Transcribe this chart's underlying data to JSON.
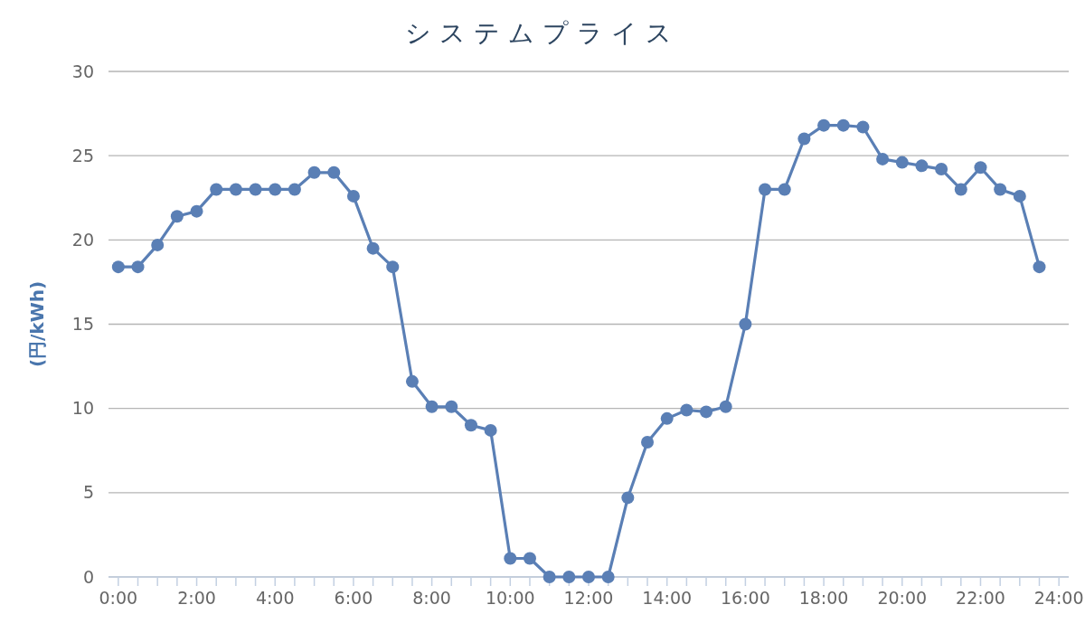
{
  "chart_data": {
    "type": "line",
    "title": "システムプライス",
    "ylabel": "(円/kWh)",
    "x": [
      0,
      0.5,
      1,
      1.5,
      2,
      2.5,
      3,
      3.5,
      4,
      4.5,
      5,
      5.5,
      6,
      6.5,
      7,
      7.5,
      8,
      8.5,
      9,
      9.5,
      10,
      10.5,
      11,
      11.5,
      12,
      12.5,
      13,
      13.5,
      14,
      14.5,
      15,
      15.5,
      16,
      16.5,
      17,
      17.5,
      18,
      18.5,
      19,
      19.5,
      20,
      20.5,
      21,
      21.5,
      22,
      22.5,
      23,
      23.5
    ],
    "values": [
      18.4,
      18.4,
      19.7,
      21.4,
      21.7,
      23.0,
      23.0,
      23.0,
      23.0,
      23.0,
      24.0,
      24.0,
      22.6,
      19.5,
      18.4,
      11.6,
      10.1,
      10.1,
      9.0,
      8.7,
      1.1,
      1.1,
      0,
      0,
      0,
      0,
      4.7,
      8.0,
      9.4,
      9.9,
      9.8,
      10.1,
      15.0,
      23.0,
      23.0,
      26.0,
      26.8,
      26.8,
      26.7,
      24.8,
      24.6,
      24.4,
      24.2,
      23.0,
      24.3,
      23.0,
      22.6,
      18.4
    ],
    "color": "#5a7fb5",
    "marker": "circle",
    "grid": "y",
    "xlim": [
      -0.25,
      24.25
    ],
    "xticks": [
      {
        "value": 0,
        "label": "0:00"
      },
      {
        "value": 0.5,
        "label": null
      },
      {
        "value": 1,
        "label": null
      },
      {
        "value": 1.5,
        "label": null
      },
      {
        "value": 2,
        "label": "2:00"
      },
      {
        "value": 2.5,
        "label": null
      },
      {
        "value": 3,
        "label": null
      },
      {
        "value": 3.5,
        "label": null
      },
      {
        "value": 4,
        "label": "4:00"
      },
      {
        "value": 4.5,
        "label": null
      },
      {
        "value": 5,
        "label": null
      },
      {
        "value": 5.5,
        "label": null
      },
      {
        "value": 6,
        "label": "6:00"
      },
      {
        "value": 6.5,
        "label": null
      },
      {
        "value": 7,
        "label": null
      },
      {
        "value": 7.5,
        "label": null
      },
      {
        "value": 8,
        "label": "8:00"
      },
      {
        "value": 8.5,
        "label": null
      },
      {
        "value": 9,
        "label": null
      },
      {
        "value": 9.5,
        "label": null
      },
      {
        "value": 10,
        "label": "10:00"
      },
      {
        "value": 10.5,
        "label": null
      },
      {
        "value": 11,
        "label": null
      },
      {
        "value": 11.5,
        "label": null
      },
      {
        "value": 12,
        "label": "12:00"
      },
      {
        "value": 12.5,
        "label": null
      },
      {
        "value": 13,
        "label": null
      },
      {
        "value": 13.5,
        "label": null
      },
      {
        "value": 14,
        "label": "14:00"
      },
      {
        "value": 14.5,
        "label": null
      },
      {
        "value": 15,
        "label": null
      },
      {
        "value": 15.5,
        "label": null
      },
      {
        "value": 16,
        "label": "16:00"
      },
      {
        "value": 16.5,
        "label": null
      },
      {
        "value": 17,
        "label": null
      },
      {
        "value": 17.5,
        "label": null
      },
      {
        "value": 18,
        "label": "18:00"
      },
      {
        "value": 18.5,
        "label": null
      },
      {
        "value": 19,
        "label": null
      },
      {
        "value": 19.5,
        "label": null
      },
      {
        "value": 20,
        "label": "20:00"
      },
      {
        "value": 20.5,
        "label": null
      },
      {
        "value": 21,
        "label": null
      },
      {
        "value": 21.5,
        "label": null
      },
      {
        "value": 22,
        "label": "22:00"
      },
      {
        "value": 22.5,
        "label": null
      },
      {
        "value": 23,
        "label": null
      },
      {
        "value": 23.5,
        "label": null
      },
      {
        "value": 24,
        "label": "24:00"
      }
    ],
    "ylim": [
      0,
      30
    ],
    "yticks": [
      0,
      5,
      10,
      15,
      20,
      25,
      30
    ]
  }
}
